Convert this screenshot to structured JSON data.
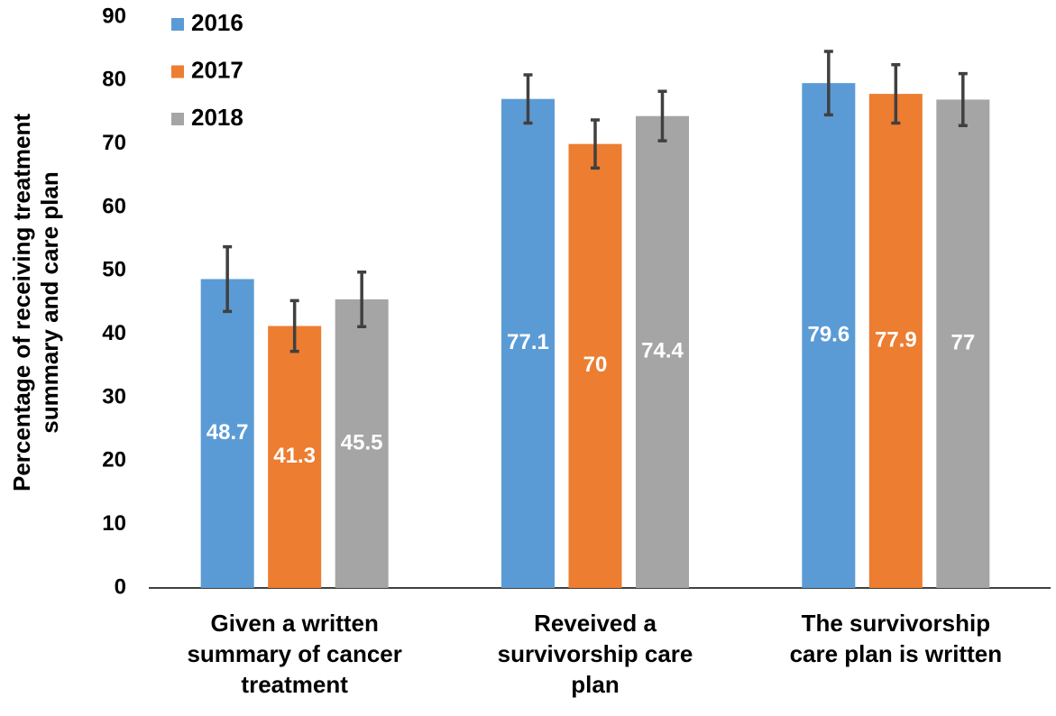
{
  "chart_data": {
    "type": "bar",
    "ylabel": [
      "Percentage of receiving treatment",
      "summary and care plan"
    ],
    "categories": [
      [
        "Given a written",
        "summary of cancer",
        "treatment"
      ],
      [
        "Reveived a",
        "survivorship care",
        "plan"
      ],
      [
        "The  survivorship",
        "care plan is written"
      ]
    ],
    "series": [
      {
        "name": "2016",
        "color": "#5b9bd5",
        "values": [
          48.7,
          77.1,
          79.6
        ],
        "errors": [
          5.1,
          3.8,
          5.0
        ]
      },
      {
        "name": "2017",
        "color": "#ed7d31",
        "values": [
          41.3,
          70,
          77.9
        ],
        "errors": [
          4.0,
          3.8,
          4.6
        ]
      },
      {
        "name": "2018",
        "color": "#a5a5a5",
        "values": [
          45.5,
          74.4,
          77
        ],
        "errors": [
          4.3,
          3.9,
          4.1
        ]
      }
    ],
    "ylim": [
      0,
      90
    ],
    "yticks": [
      0,
      10,
      20,
      30,
      40,
      50,
      60,
      70,
      80,
      90
    ],
    "grid": false,
    "legend": "top-left"
  }
}
